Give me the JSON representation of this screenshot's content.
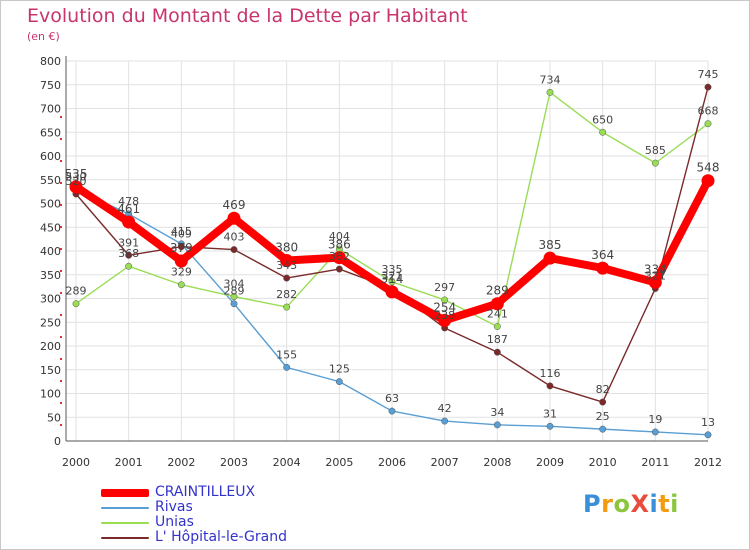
{
  "title": "Evolution du Montant de la Dette par Habitant",
  "unit_label": "(en €)",
  "logo": {
    "text": "ProXiti",
    "letters": [
      {
        "ch": "P",
        "color": "#3a8fd8"
      },
      {
        "ch": "r",
        "color": "#f39c12"
      },
      {
        "ch": "o",
        "color": "#8cc63f"
      },
      {
        "ch": "X",
        "color": "#e74c3c"
      },
      {
        "ch": "i",
        "color": "#3a8fd8"
      },
      {
        "ch": "t",
        "color": "#f39c12"
      },
      {
        "ch": "i",
        "color": "#8cc63f"
      }
    ]
  },
  "chart_data": {
    "type": "line",
    "title": "Evolution du Montant de la Dette par Habitant",
    "xlabel": "",
    "ylabel": "(en €)",
    "x": [
      "2000",
      "2001",
      "2002",
      "2003",
      "2004",
      "2005",
      "2006",
      "2007",
      "2008",
      "2009",
      "2010",
      "2011",
      "2012"
    ],
    "ylim": [
      0,
      800
    ],
    "yticks": [
      "0",
      "50",
      "100",
      "150",
      "200",
      "250",
      "300",
      "350",
      "400",
      "450",
      "500",
      "550",
      "600",
      "650",
      "700",
      "750",
      "800"
    ],
    "grid": true,
    "legend_position": "bottom-left",
    "series": [
      {
        "name": "CRAINTILLEUX",
        "color": "#ff0000",
        "values": [
          535,
          461,
          379,
          469,
          380,
          386,
          314,
          254,
          289,
          385,
          364,
          334,
          548
        ]
      },
      {
        "name": "Rivas",
        "color": "#5a9fd4",
        "values": [
          530,
          478,
          415,
          289,
          155,
          125,
          63,
          42,
          34,
          31,
          25,
          19,
          13
        ]
      },
      {
        "name": "Unias",
        "color": "#99dd55",
        "values": [
          289,
          368,
          329,
          304,
          282,
          404,
          335,
          297,
          241,
          734,
          650,
          585,
          668
        ]
      },
      {
        "name": "L' Hôpital-le-Grand",
        "color": "#7a2a2a",
        "values": [
          520,
          391,
          409,
          403,
          343,
          362,
          321,
          238,
          187,
          116,
          82,
          321,
          745
        ]
      }
    ]
  }
}
